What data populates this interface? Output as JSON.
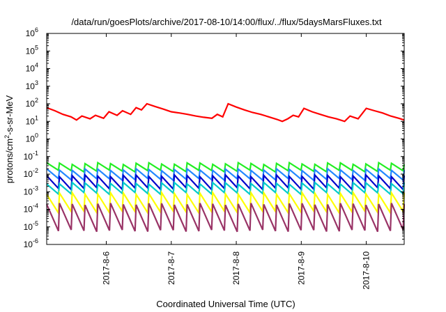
{
  "chart_data": {
    "type": "line",
    "title": "/data/run/goesPlots/archive/2017-08-10/14:00/flux/../flux/5daysMarsFluxes.txt",
    "xlabel": "Coordinated Universal Time (UTC)",
    "ylabel_parts": {
      "before": "protons/cm",
      "sup": "2",
      "after": "-s-sr-MeV"
    },
    "y_scale": "log",
    "ylim": [
      1e-06,
      1000000.0
    ],
    "y_ticks": [
      {
        "base": "10",
        "exp": "-6",
        "value": 1e-06
      },
      {
        "base": "10",
        "exp": "-5",
        "value": 1e-05
      },
      {
        "base": "10",
        "exp": "-4",
        "value": 0.0001
      },
      {
        "base": "10",
        "exp": "-3",
        "value": 0.001
      },
      {
        "base": "10",
        "exp": "-2",
        "value": 0.01
      },
      {
        "base": "10",
        "exp": "-1",
        "value": 0.1
      },
      {
        "base": "10",
        "exp": "0",
        "value": 1
      },
      {
        "base": "10",
        "exp": "1",
        "value": 10
      },
      {
        "base": "10",
        "exp": "2",
        "value": 100
      },
      {
        "base": "10",
        "exp": "3",
        "value": 1000
      },
      {
        "base": "10",
        "exp": "4",
        "value": 10000
      },
      {
        "base": "10",
        "exp": "5",
        "value": 100000
      },
      {
        "base": "10",
        "exp": "6",
        "value": 1000000
      }
    ],
    "x_range_days": [
      "2017-08-05T02:00",
      "2017-08-10T14:00"
    ],
    "x_ticks": [
      {
        "label": "2017-8-6",
        "date": "2017-08-06"
      },
      {
        "label": "2017-8-7",
        "date": "2017-08-07"
      },
      {
        "label": "2017-8-8",
        "date": "2017-08-08"
      },
      {
        "label": "2017-8-9",
        "date": "2017-08-09"
      },
      {
        "label": "2017-8-10",
        "date": "2017-08-10"
      }
    ],
    "grid": false,
    "legend": "none",
    "series": [
      {
        "color": "#ff0000",
        "width": 2.2,
        "points": [
          [
            "2017-08-05T02:00",
            60
          ],
          [
            "2017-08-05T05:00",
            40
          ],
          [
            "2017-08-05T08:00",
            25
          ],
          [
            "2017-08-05T11:00",
            18
          ],
          [
            "2017-08-05T13:00",
            12
          ],
          [
            "2017-08-05T15:00",
            20
          ],
          [
            "2017-08-05T18:00",
            14
          ],
          [
            "2017-08-05T20:00",
            22
          ],
          [
            "2017-08-05T23:00",
            15
          ],
          [
            "2017-08-06T01:00",
            35
          ],
          [
            "2017-08-06T04:00",
            22
          ],
          [
            "2017-08-06T06:00",
            40
          ],
          [
            "2017-08-06T09:00",
            25
          ],
          [
            "2017-08-06T11:00",
            60
          ],
          [
            "2017-08-06T13:00",
            45
          ],
          [
            "2017-08-06T15:00",
            100
          ],
          [
            "2017-08-06T18:00",
            70
          ],
          [
            "2017-08-06T21:00",
            50
          ],
          [
            "2017-08-07T00:00",
            35
          ],
          [
            "2017-08-07T03:00",
            30
          ],
          [
            "2017-08-07T06:00",
            25
          ],
          [
            "2017-08-07T09:00",
            20
          ],
          [
            "2017-08-07T12:00",
            17
          ],
          [
            "2017-08-07T15:00",
            15
          ],
          [
            "2017-08-07T17:00",
            25
          ],
          [
            "2017-08-07T19:00",
            18
          ],
          [
            "2017-08-07T21:00",
            100
          ],
          [
            "2017-08-08T00:00",
            65
          ],
          [
            "2017-08-08T03:00",
            45
          ],
          [
            "2017-08-08T06:00",
            32
          ],
          [
            "2017-08-08T09:00",
            25
          ],
          [
            "2017-08-08T12:00",
            18
          ],
          [
            "2017-08-08T15:00",
            13
          ],
          [
            "2017-08-08T17:00",
            10
          ],
          [
            "2017-08-08T19:00",
            14
          ],
          [
            "2017-08-08T21:00",
            22
          ],
          [
            "2017-08-08T23:00",
            18
          ],
          [
            "2017-08-09T01:00",
            55
          ],
          [
            "2017-08-09T04:00",
            35
          ],
          [
            "2017-08-09T07:00",
            25
          ],
          [
            "2017-08-09T10:00",
            18
          ],
          [
            "2017-08-09T13:00",
            14
          ],
          [
            "2017-08-09T16:00",
            10
          ],
          [
            "2017-08-09T18:00",
            20
          ],
          [
            "2017-08-09T21:00",
            14
          ],
          [
            "2017-08-10T00:00",
            55
          ],
          [
            "2017-08-10T03:00",
            40
          ],
          [
            "2017-08-10T06:00",
            30
          ],
          [
            "2017-08-10T09:00",
            20
          ],
          [
            "2017-08-10T12:00",
            15
          ],
          [
            "2017-08-10T14:00",
            12
          ]
        ]
      },
      {
        "color": "#22ee22",
        "width": 2.2,
        "peak": 0.04,
        "trough": 0.015,
        "cycles": 28
      },
      {
        "color": "#2288ff",
        "width": 2.2,
        "peak": 0.018,
        "trough": 0.005,
        "cycles": 28
      },
      {
        "color": "#0000cc",
        "width": 2.2,
        "peak": 0.008,
        "trough": 0.0015,
        "cycles": 28
      },
      {
        "color": "#00cccc",
        "width": 2.2,
        "peak": 0.003,
        "trough": 0.0008,
        "cycles": 28
      },
      {
        "color": "#ffff00",
        "width": 2.2,
        "peak": 0.0008,
        "trough": 7e-05,
        "cycles": 28
      },
      {
        "color": "#993366",
        "width": 2.2,
        "peak": 0.0002,
        "trough": 6e-06,
        "cycles": 28
      }
    ]
  }
}
